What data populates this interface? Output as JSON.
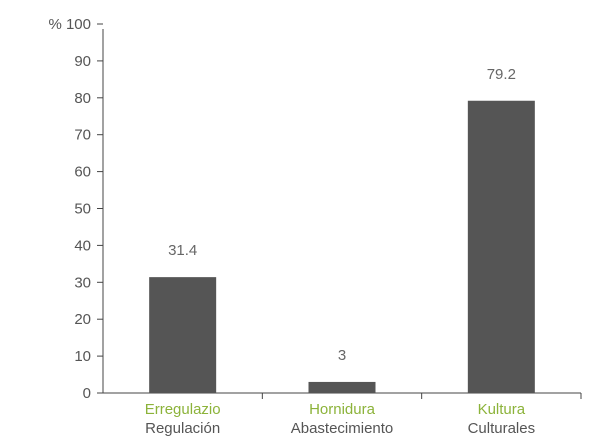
{
  "chart_data": {
    "type": "bar",
    "ylabel": "%",
    "ylim": [
      0,
      100
    ],
    "yticks": [
      0,
      10,
      20,
      30,
      40,
      50,
      60,
      70,
      80,
      90,
      100
    ],
    "grid": false,
    "legend": "none",
    "categories": [
      {
        "primary": "Erregulazio",
        "secondary": "Regulación"
      },
      {
        "primary": "Hornidura",
        "secondary": "Abastecimiento"
      },
      {
        "primary": "Kultura",
        "secondary": "Culturales"
      }
    ],
    "values": [
      31.4,
      3,
      79.2
    ],
    "value_labels": [
      "31.4",
      "3",
      "79.2"
    ]
  },
  "colors": {
    "bar": "#555555",
    "axis": "#444444",
    "primary_label": "#8cb33a",
    "secondary_label": "#555555",
    "tick_text": "#555555",
    "value_text": "#666666"
  }
}
